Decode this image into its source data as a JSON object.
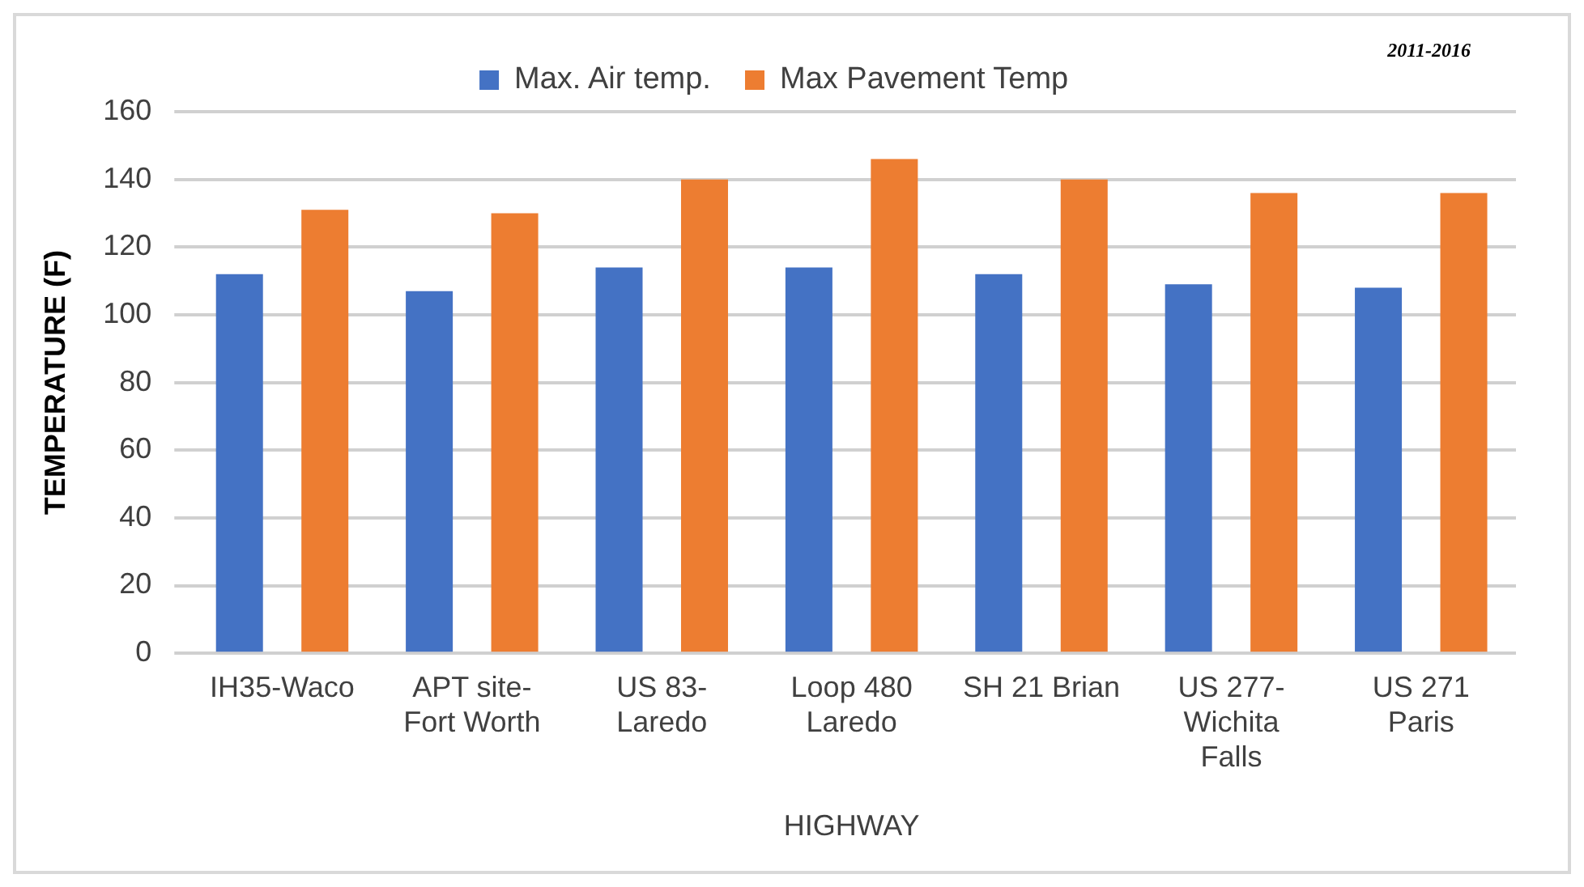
{
  "chart_data": {
    "type": "bar",
    "annotations": [
      "2011-2016"
    ],
    "xlabel": "HIGHWAY",
    "ylabel": "TEMPERATURE (F)",
    "categories": [
      "IH35-Waco",
      "APT site-\nFort Worth",
      "US 83-\nLaredo",
      "Loop 480\nLaredo",
      "SH 21 Brian",
      "US 277-\nWichita\nFalls",
      "US 271\nParis"
    ],
    "series": [
      {
        "name": "Max. Air temp.",
        "color": "#4472c4",
        "values": [
          112,
          107,
          114,
          114,
          112,
          109,
          108
        ]
      },
      {
        "name": "Max Pavement Temp",
        "color": "#ed7d31",
        "values": [
          131,
          130,
          140,
          146,
          140,
          136,
          136
        ]
      }
    ],
    "ylim": [
      0,
      160
    ],
    "yticks": [
      0,
      20,
      40,
      60,
      80,
      100,
      120,
      140,
      160
    ],
    "grid": "y",
    "legend": "top"
  }
}
